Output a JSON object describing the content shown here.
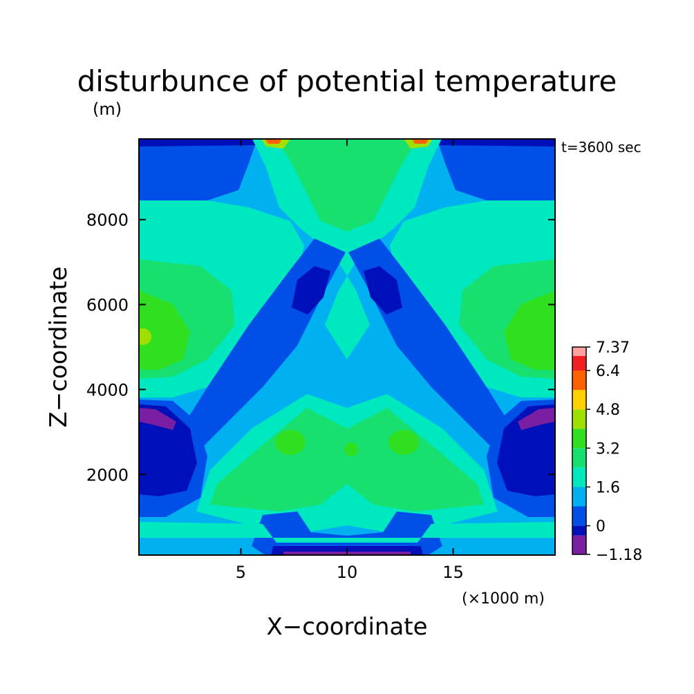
{
  "chart_data": {
    "type": "heatmap",
    "title": "disturbunce of potential temperature",
    "unit_label": "(m)",
    "time_label": "t=3600 sec",
    "xlabel": "X−coordinate",
    "ylabel": "Z−coordinate",
    "x_scale_label": "(×1000 m)",
    "xlim": [
      0.2,
      19.8
    ],
    "ylim": [
      100,
      9900
    ],
    "x_ticks": [
      5,
      10,
      15
    ],
    "y_ticks": [
      2000,
      4000,
      6000,
      8000
    ],
    "colorbar": {
      "levels": [
        -1.18,
        -0.4,
        0,
        0.8,
        1.6,
        2.4,
        3.2,
        4.0,
        4.8,
        5.6,
        6.4,
        7.0,
        7.37
      ],
      "colors": [
        "#7b1fa2",
        "#0010b8",
        "#0050e8",
        "#00b0f0",
        "#00e8c0",
        "#18e070",
        "#30e020",
        "#a0e000",
        "#ffd000",
        "#ff6000",
        "#f02020",
        "#ffa0a0"
      ],
      "tick_labels": [
        "7.37",
        "6.4",
        "4.8",
        "3.2",
        "1.6",
        "0",
        "−1.18"
      ],
      "tick_values": [
        7.37,
        6.4,
        4.8,
        3.2,
        1.6,
        0,
        -1.18
      ]
    }
  }
}
